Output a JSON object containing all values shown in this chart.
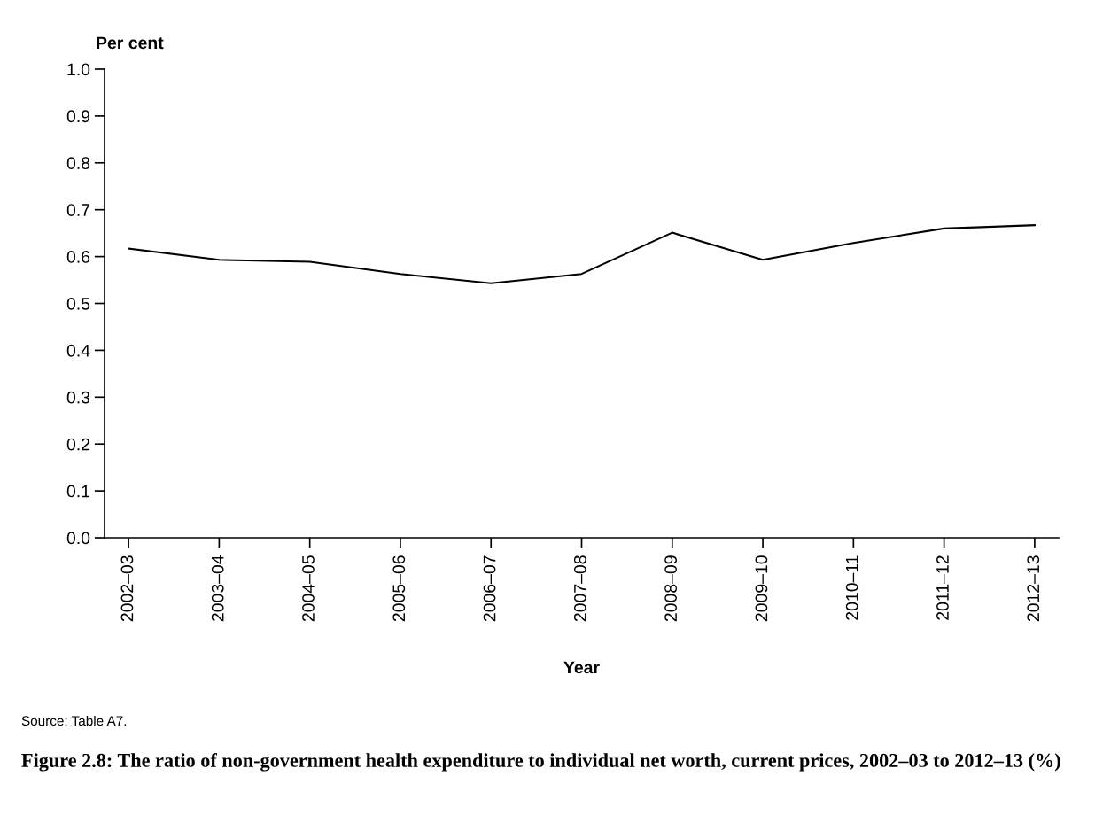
{
  "chart_data": {
    "type": "line",
    "title": "Figure 2.8: The ratio of non-government health expenditure to individual net worth, current prices, 2002–03 to 2012–13 (%)",
    "ylabel": "Per cent",
    "xlabel": "Year",
    "annotations": [
      "Source: Table A7."
    ],
    "categories": [
      "2002–03",
      "2003–04",
      "2004–05",
      "2005–06",
      "2006–07",
      "2007–08",
      "2008–09",
      "2009–10",
      "2010–11",
      "2011–12",
      "2012–13"
    ],
    "series": [
      {
        "color": "#000000",
        "values": [
          0.617,
          0.593,
          0.589,
          0.563,
          0.543,
          0.563,
          0.651,
          0.593,
          0.629,
          0.66,
          0.667
        ]
      }
    ],
    "ylim": [
      0,
      1.0
    ],
    "yticks": [
      {
        "value": 0,
        "label": "0.0"
      },
      {
        "value": 0.1,
        "label": "0.1"
      },
      {
        "value": 0.2,
        "label": "0.2"
      },
      {
        "value": 0.3,
        "label": "0.3"
      },
      {
        "value": 0.4,
        "label": "0.4"
      },
      {
        "value": 0.5,
        "label": "0.5"
      },
      {
        "value": 0.6,
        "label": "0.6"
      },
      {
        "value": 0.7,
        "label": "0.7"
      },
      {
        "value": 0.8,
        "label": "0.8"
      },
      {
        "value": 0.9,
        "label": "0.9"
      },
      {
        "value": 1.0,
        "label": "1.0"
      }
    ],
    "grid": false,
    "legend": false
  }
}
